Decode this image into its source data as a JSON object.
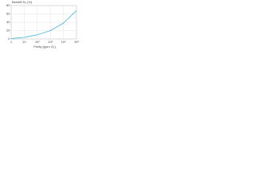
{
  "chart_data": {
    "type": "line",
    "x_label": "Purity (ppm O₂)",
    "y_label": "Benefit N₂ (%)",
    "x": [
      1,
      10,
      100,
      1000,
      10000,
      100000
    ],
    "series": [
      {
        "name": "Benefit",
        "color": "#4fb8dc",
        "values": [
          1,
          4,
          10,
          20,
          38,
          68
        ]
      }
    ],
    "xlim": [
      1,
      100000
    ],
    "xticks": [
      1,
      10,
      {
        "value": 100,
        "label": "10²"
      },
      {
        "value": 1000,
        "label": "10³"
      },
      {
        "value": 10000,
        "label": "10⁴"
      },
      {
        "value": 100000,
        "label": "10⁵"
      }
    ],
    "ylim": [
      0,
      80
    ],
    "yticks": [
      0,
      20,
      40,
      60,
      80
    ],
    "x_log": true,
    "grid": true
  }
}
